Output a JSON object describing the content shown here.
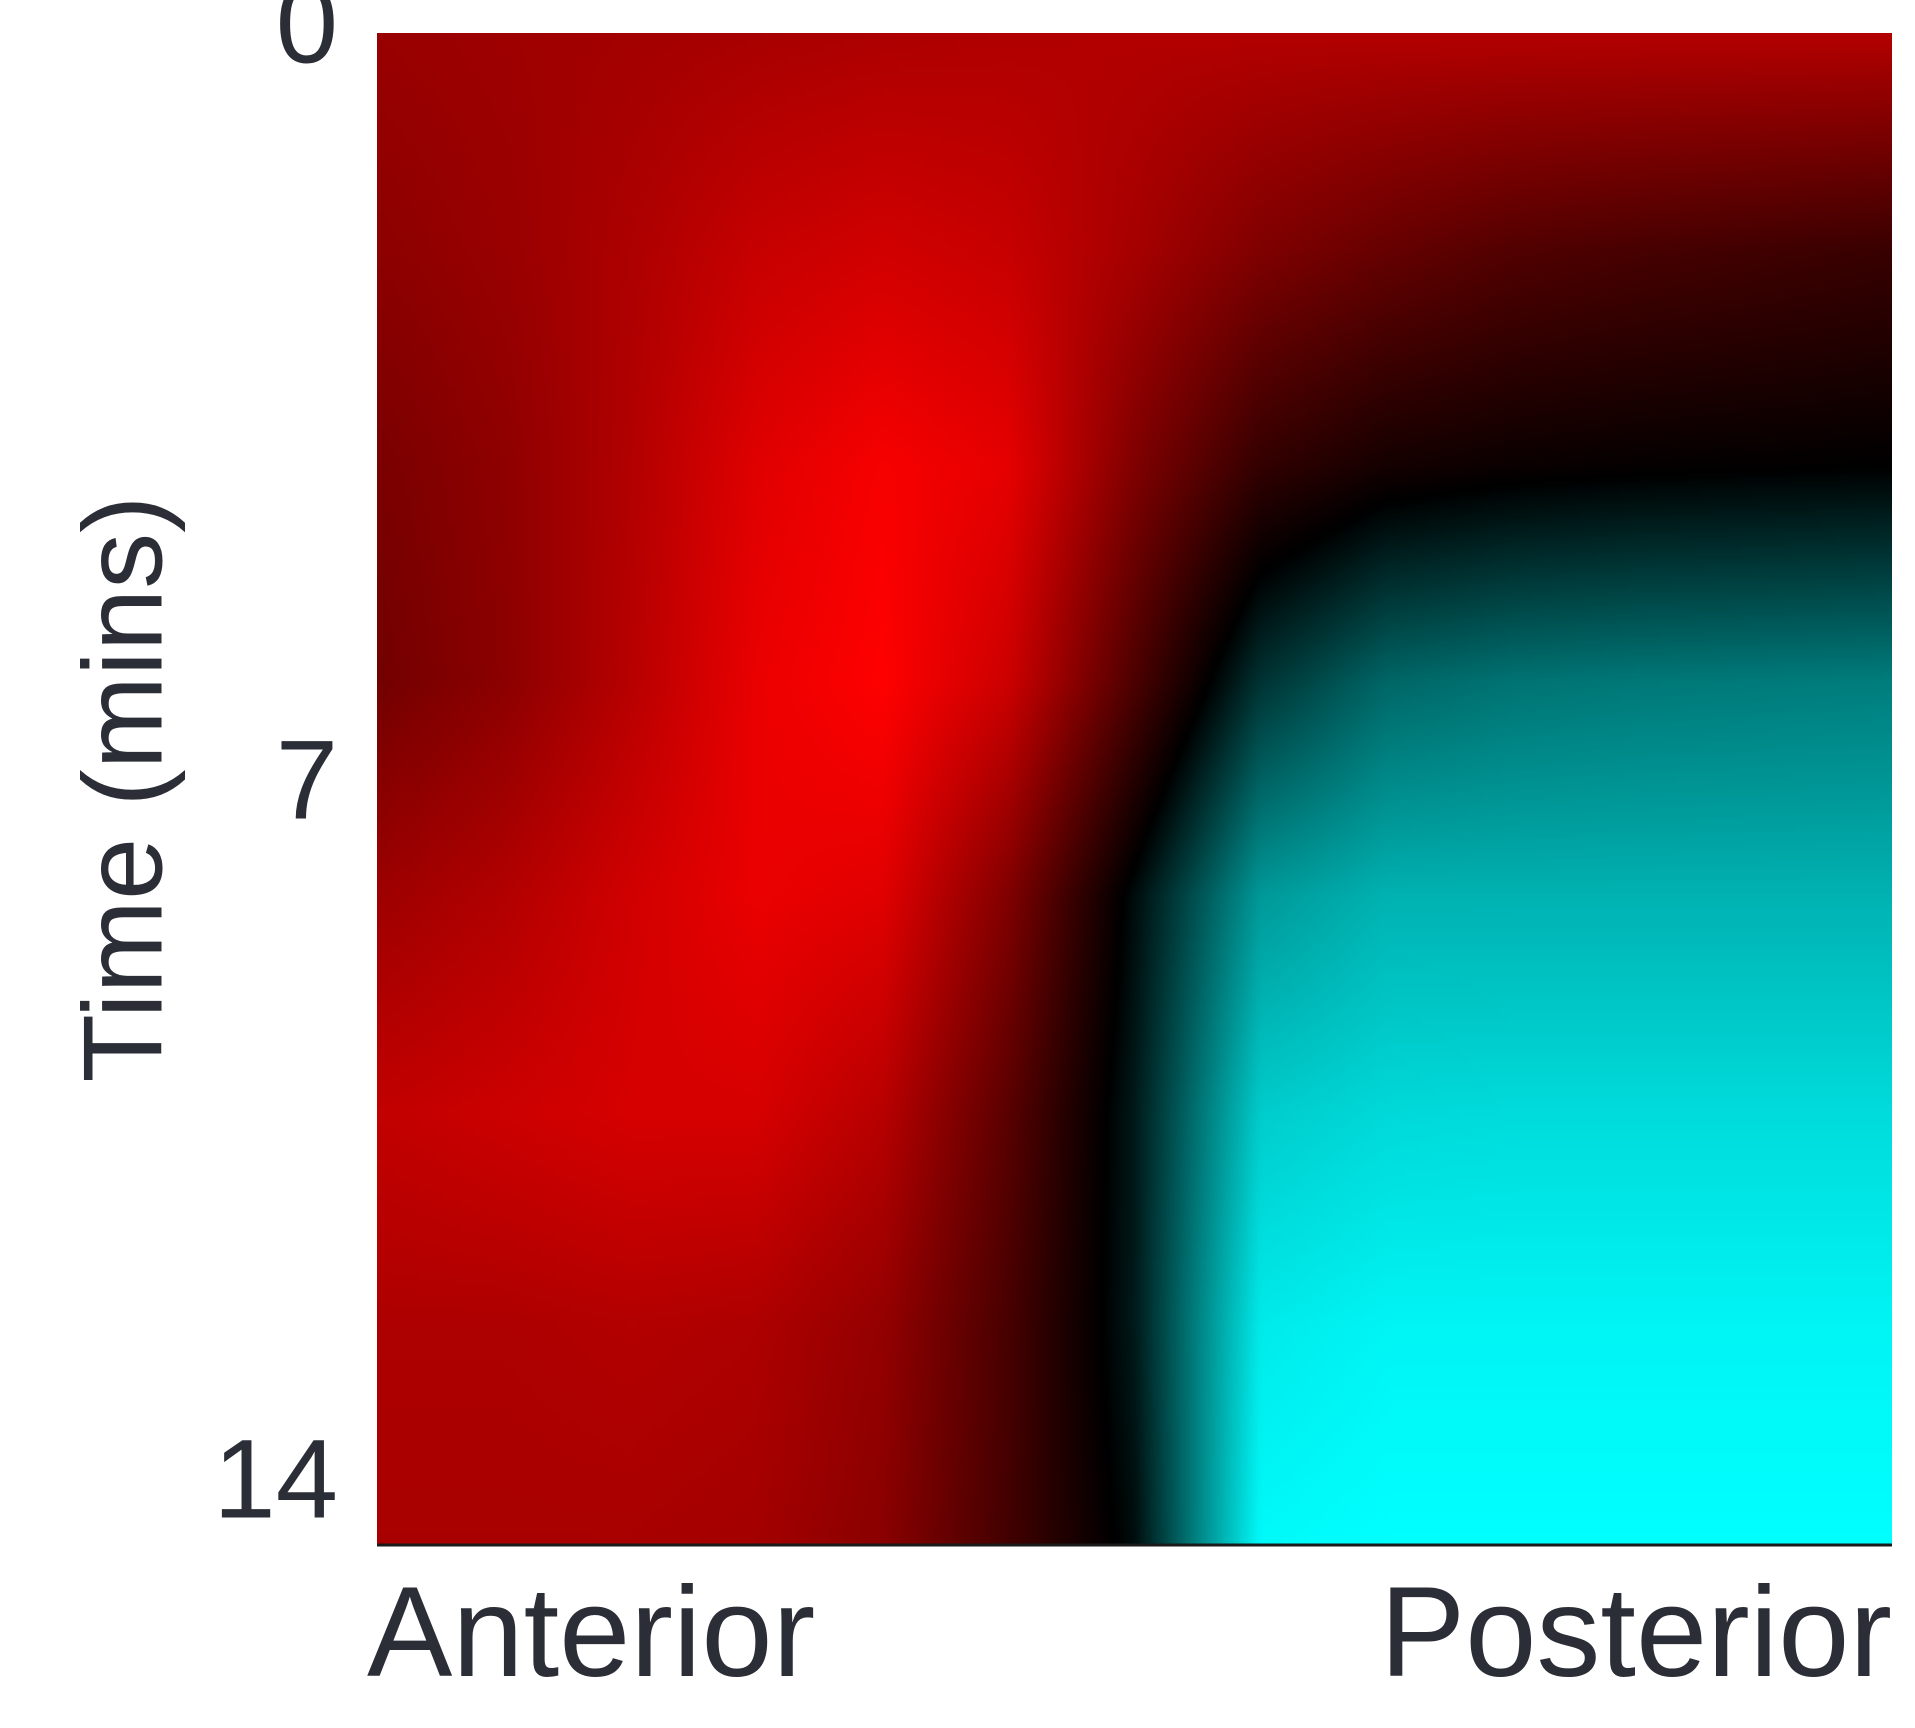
{
  "chart_data": {
    "type": "heatmap",
    "title": "",
    "xlabel": "",
    "ylabel": "Time (mins)",
    "x_tick_labels": [
      "Anterior",
      "Posterior"
    ],
    "y_ticks": [
      0,
      7,
      14
    ],
    "ylim": [
      0,
      14
    ],
    "y_inverted": true,
    "grid": false,
    "legend": "none",
    "colors": {
      "positive": "#ff0000",
      "zero": "#000000",
      "negative": "#00ffff",
      "text": "#2b2e36"
    },
    "x_positions": [
      "Anterior",
      "",
      "",
      "",
      "",
      "",
      "",
      "",
      "",
      "",
      "",
      "",
      "Posterior"
    ],
    "t_values": [
      0,
      2,
      4,
      6,
      8,
      10,
      12,
      14
    ],
    "values": [
      [
        0.6,
        0.62,
        0.64,
        0.66,
        0.68,
        0.69,
        0.7,
        0.7,
        0.7,
        0.7,
        0.7,
        0.7,
        0.7
      ],
      [
        0.55,
        0.6,
        0.68,
        0.78,
        0.82,
        0.78,
        0.65,
        0.5,
        0.4,
        0.32,
        0.28,
        0.25,
        0.22
      ],
      [
        0.48,
        0.56,
        0.7,
        0.88,
        0.97,
        0.9,
        0.5,
        0.2,
        0.08,
        0.04,
        0.02,
        0.01,
        0.0
      ],
      [
        0.45,
        0.55,
        0.72,
        0.92,
        1.0,
        0.8,
        0.3,
        -0.2,
        -0.4,
        -0.45,
        -0.47,
        -0.48,
        -0.49
      ],
      [
        0.62,
        0.7,
        0.82,
        0.92,
        0.88,
        0.5,
        -0.05,
        -0.6,
        -0.7,
        -0.7,
        -0.7,
        -0.7,
        -0.7
      ],
      [
        0.76,
        0.8,
        0.84,
        0.84,
        0.72,
        0.35,
        -0.1,
        -0.8,
        -0.85,
        -0.86,
        -0.86,
        -0.86,
        -0.86
      ],
      [
        0.68,
        0.68,
        0.7,
        0.68,
        0.58,
        0.28,
        -0.1,
        -0.92,
        -0.96,
        -0.96,
        -0.96,
        -0.96,
        -0.96
      ],
      [
        0.66,
        0.66,
        0.66,
        0.64,
        0.54,
        0.26,
        -0.05,
        -0.98,
        -1.0,
        -1.0,
        -1.0,
        -1.0,
        -1.0
      ]
    ]
  }
}
